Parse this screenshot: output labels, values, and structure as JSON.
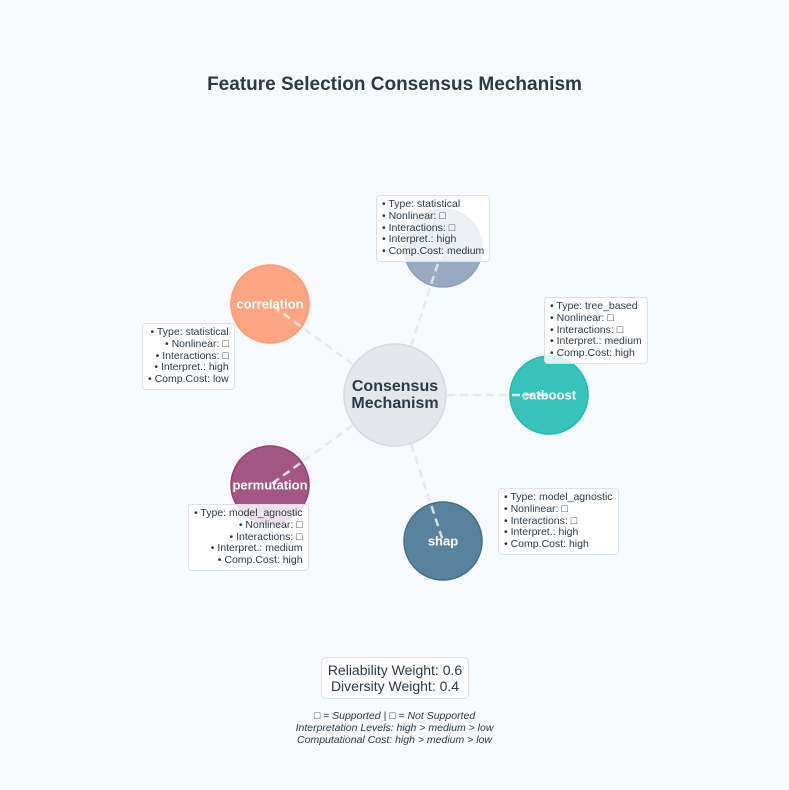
{
  "title": "Feature Selection Consensus Mechanism",
  "center": {
    "label": "Consensus\nMechanism",
    "color": "#e3e6ea"
  },
  "methods": [
    {
      "name": "",
      "color": "#8ba0b8",
      "type": "statistical",
      "nonlinear": "□",
      "interactions": "□",
      "interpretability": "high",
      "comp_cost": "medium"
    },
    {
      "name": "catboost",
      "color": "#1fbab0",
      "type": "tree_based",
      "nonlinear": "□",
      "interactions": "□",
      "interpretability": "medium",
      "comp_cost": "high"
    },
    {
      "name": "shap",
      "color": "#44708f",
      "type": "model_agnostic",
      "nonlinear": "□",
      "interactions": "□",
      "interpretability": "high",
      "comp_cost": "high"
    },
    {
      "name": "permutation",
      "color": "#95406f",
      "type": "model_agnostic",
      "nonlinear": "□",
      "interactions": "□",
      "interpretability": "medium",
      "comp_cost": "high"
    },
    {
      "name": "correlation",
      "color": "#ff9a72",
      "type": "statistical",
      "nonlinear": "□",
      "interactions": "□",
      "interpretability": "high",
      "comp_cost": "low"
    }
  ],
  "info_labels": {
    "type": "• Type: ",
    "nonlinear": "• Nonlinear: ",
    "interactions": "• Interactions: ",
    "interpretability": "• Interpret.: ",
    "comp_cost": "• Comp.Cost: "
  },
  "weights": {
    "reliability": "Reliability Weight: 0.6",
    "diversity": "Diversity Weight: 0.4"
  },
  "legend": {
    "line1": "□ = Supported  |  □ = Not Supported",
    "line2": "Interpretation Levels: high > medium > low",
    "line3": "Computational Cost: high > medium > low"
  }
}
